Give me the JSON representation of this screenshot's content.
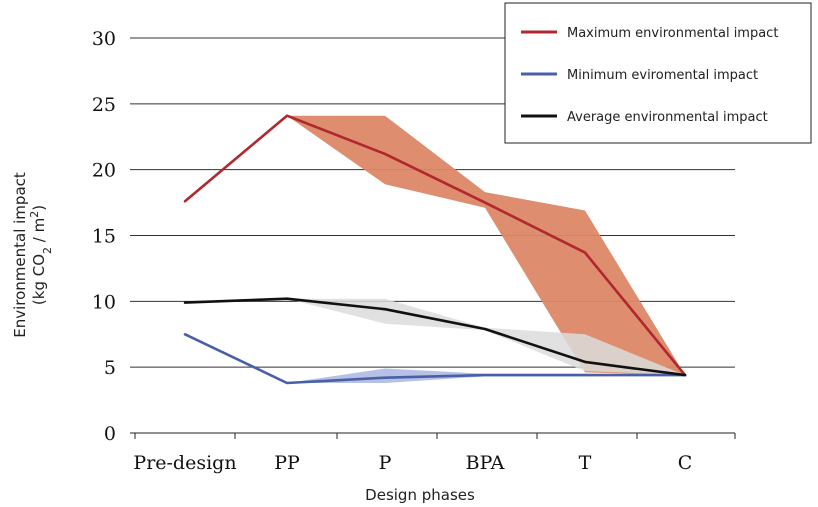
{
  "chart_data": {
    "type": "line",
    "title": "",
    "xlabel": "Design phases",
    "ylabel_line1": "Environmental impact",
    "ylabel_line2_prefix": "(kg CO",
    "ylabel_line2_sub": "2",
    "ylabel_line2_mid": " / m",
    "ylabel_line2_sup": "2",
    "ylabel_line2_suffix": ")",
    "categories": [
      "Pre-design",
      "PP",
      "P",
      "BPA",
      "T",
      "C"
    ],
    "ylim": [
      0,
      30
    ],
    "yticks": [
      "0",
      "5",
      "10",
      "15",
      "20",
      "25",
      "30"
    ],
    "grid": "horizontal",
    "legend_position": "top-right",
    "series": [
      {
        "name": "Maximum environmental impact",
        "color": "#b0282e",
        "values": [
          17.6,
          24.1,
          21.2,
          17.5,
          13.7,
          4.4
        ],
        "band_upper": [
          null,
          24.1,
          24.1,
          18.3,
          16.9,
          4.4
        ],
        "band_lower": [
          null,
          24.1,
          18.9,
          17.1,
          4.6,
          4.4
        ],
        "band_color": "#dc8766"
      },
      {
        "name": "Minimum eviromental impact",
        "color": "#4a5fa8",
        "values": [
          7.5,
          3.8,
          4.2,
          4.4,
          4.4,
          4.4
        ],
        "band_upper": [
          null,
          3.8,
          4.9,
          4.5,
          4.5,
          4.4
        ],
        "band_lower": [
          null,
          3.8,
          3.8,
          4.3,
          4.3,
          4.4
        ],
        "band_color": "#a9b6e0"
      },
      {
        "name": "Average environmental impact",
        "color": "#111111",
        "values": [
          9.9,
          10.2,
          9.4,
          7.9,
          5.4,
          4.4
        ],
        "band_upper": [
          null,
          10.2,
          10.2,
          8.0,
          7.5,
          4.4
        ],
        "band_lower": [
          null,
          10.2,
          8.3,
          7.8,
          4.7,
          4.4
        ],
        "band_color": "#dcdcdc"
      }
    ]
  }
}
